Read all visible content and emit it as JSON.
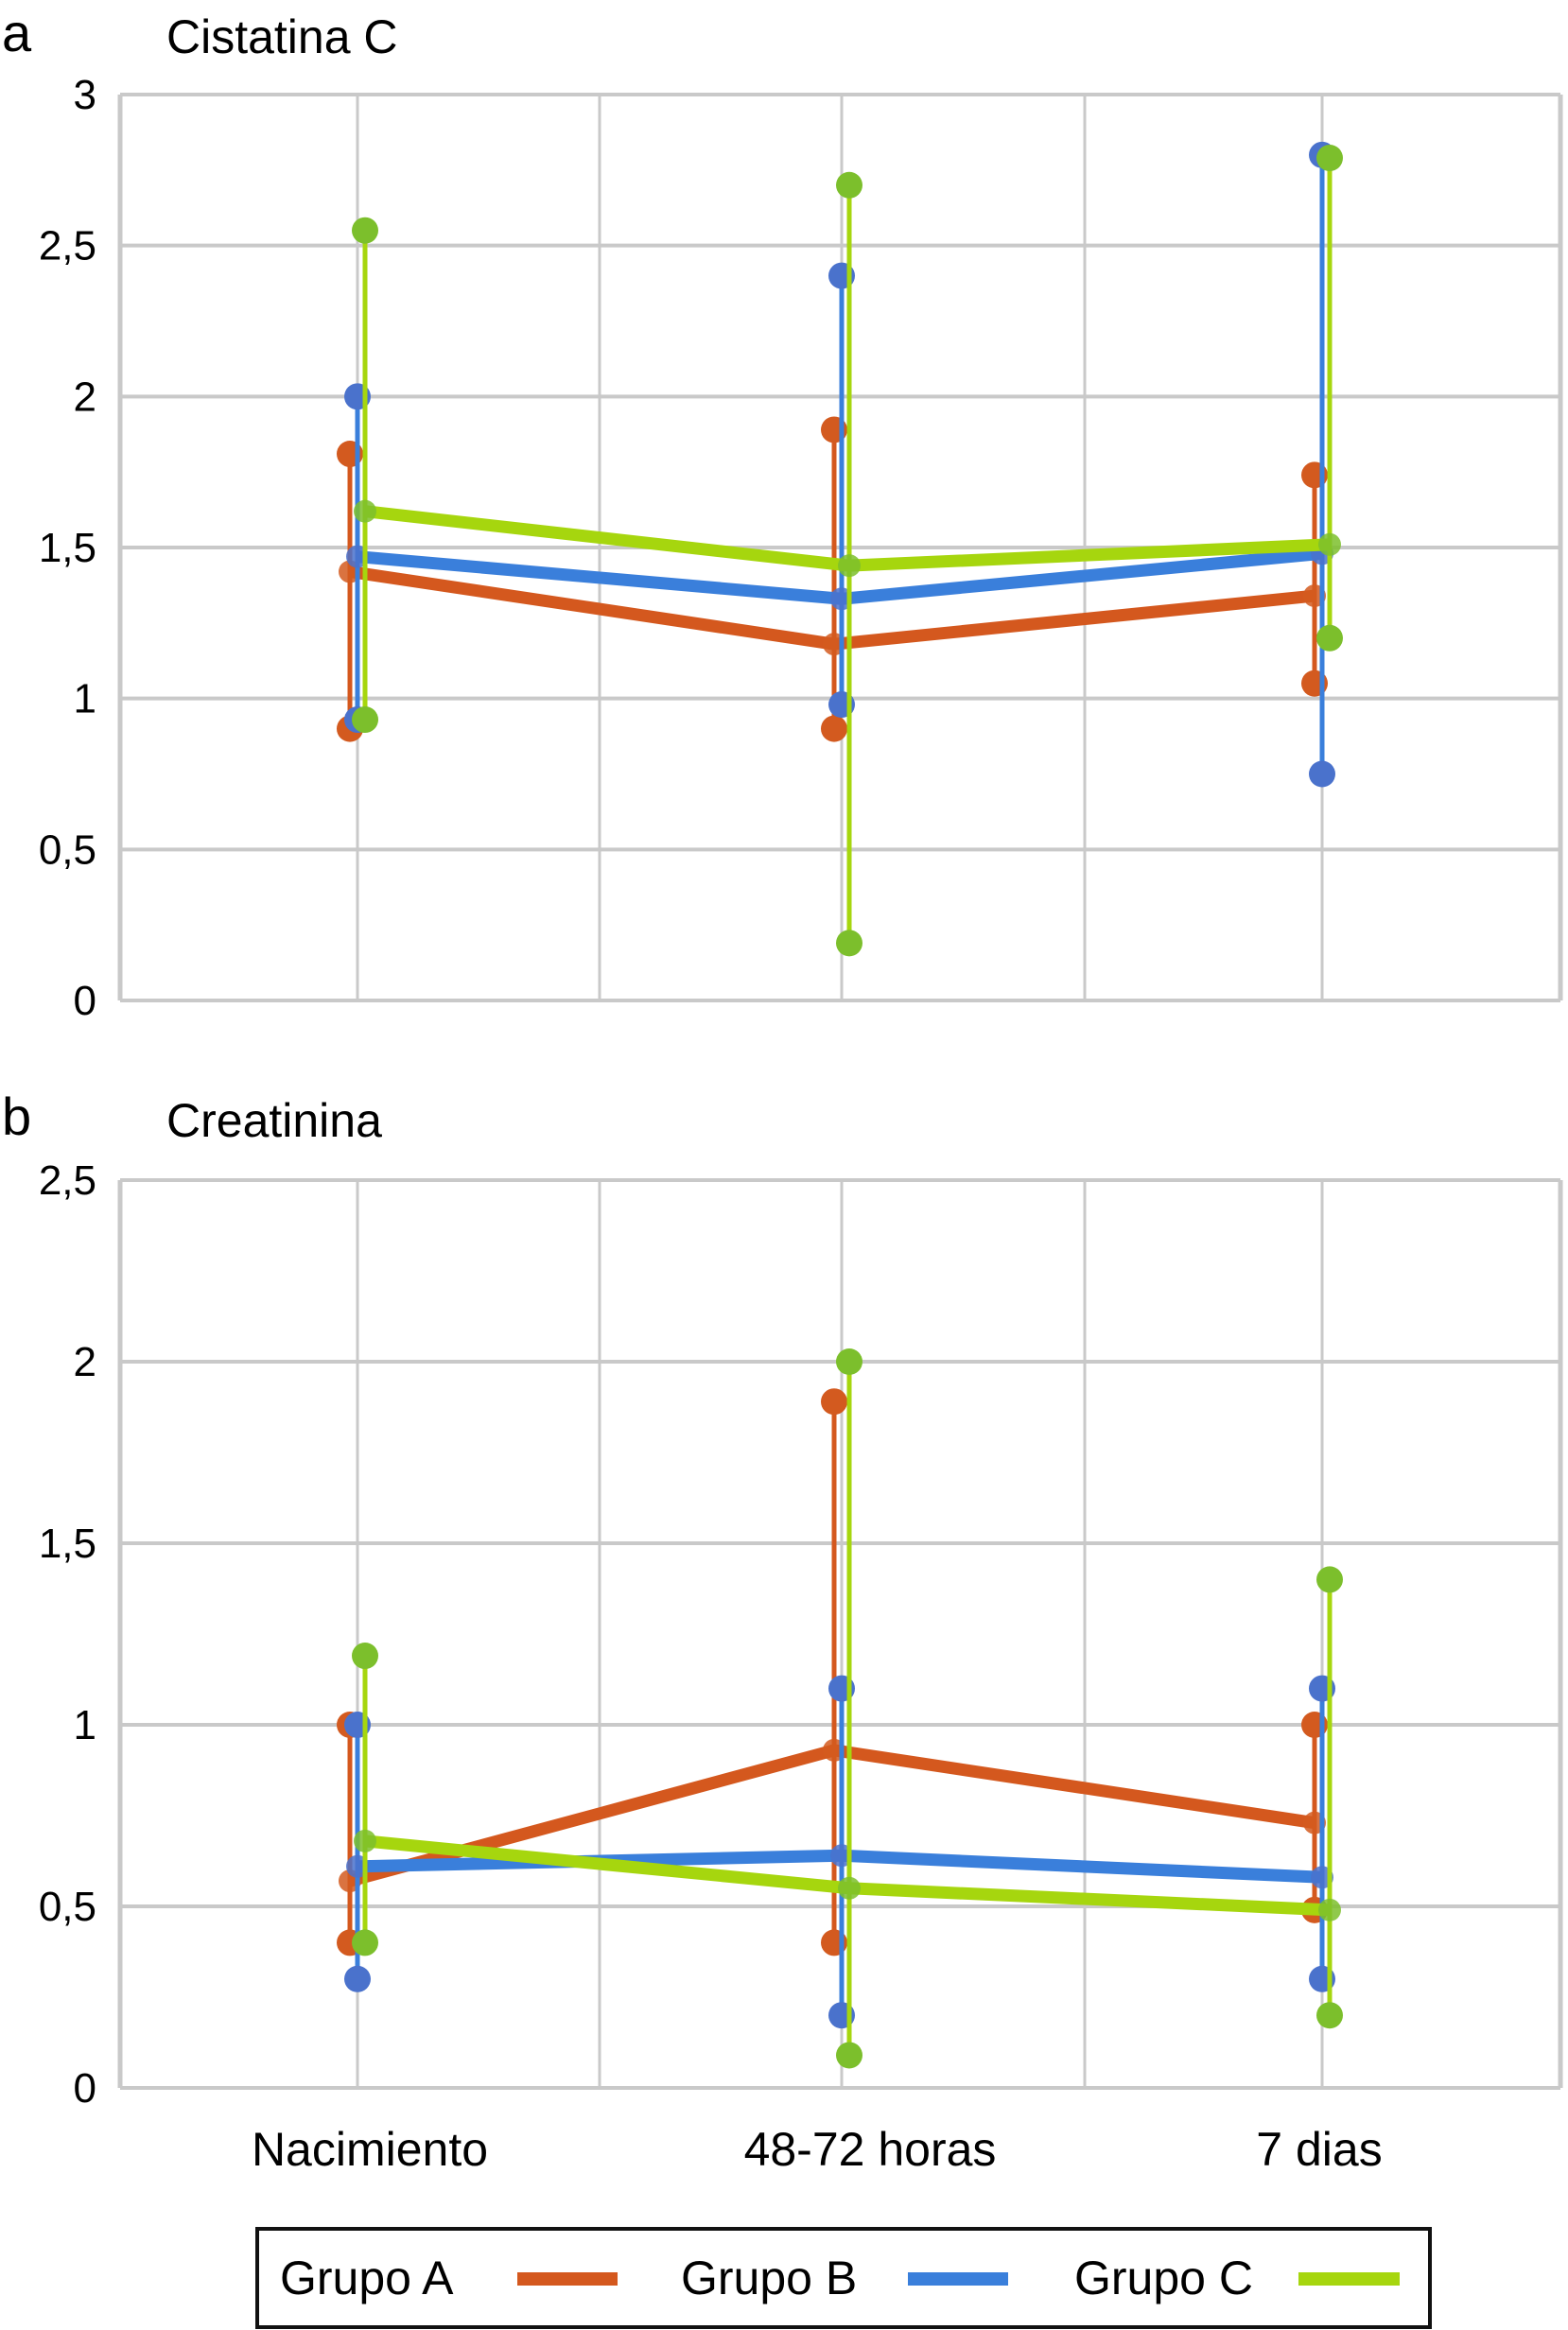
{
  "chart_data": [
    {
      "type": "line",
      "panel_label": "a",
      "title": "Cistatina C",
      "xlabel": "",
      "ylabel": "",
      "ylim": [
        0,
        3
      ],
      "yticks": [
        0,
        0.5,
        1,
        1.5,
        2,
        2.5,
        3
      ],
      "ytick_labels": [
        "0",
        "0,5",
        "1",
        "1,5",
        "2",
        "2,5",
        "3"
      ],
      "categories": [
        "Nacimiento",
        "48-72 horas",
        "7 dias"
      ],
      "show_category_labels": false,
      "grid": true,
      "series": [
        {
          "name": "Grupo A",
          "color": "#D4581E",
          "marker_color": "#D35A1F",
          "values": [
            1.42,
            1.18,
            1.34
          ],
          "min": [
            0.9,
            0.9,
            1.05
          ],
          "max": [
            1.81,
            1.89,
            1.74
          ]
        },
        {
          "name": "Grupo B",
          "color": "#3A7FDB",
          "marker_color": "#4A72CC",
          "values": [
            1.47,
            1.33,
            1.48
          ],
          "min": [
            0.93,
            0.98,
            0.75
          ],
          "max": [
            2.0,
            2.4,
            2.8
          ]
        },
        {
          "name": "Grupo C",
          "color": "#A6D60E",
          "marker_color": "#7CBF2C",
          "values": [
            1.62,
            1.44,
            1.51
          ],
          "min": [
            0.93,
            0.19,
            1.2
          ],
          "max": [
            2.55,
            2.7,
            2.79
          ]
        }
      ]
    },
    {
      "type": "line",
      "panel_label": "b",
      "title": "Creatinina",
      "xlabel": "",
      "ylabel": "",
      "ylim": [
        0,
        2.5
      ],
      "yticks": [
        0,
        0.5,
        1,
        1.5,
        2,
        2.5
      ],
      "ytick_labels": [
        "0",
        "0,5",
        "1",
        "1,5",
        "2",
        "2,5"
      ],
      "categories": [
        "Nacimiento",
        "48-72 horas",
        "7 dias"
      ],
      "show_category_labels": true,
      "grid": true,
      "series": [
        {
          "name": "Grupo A",
          "color": "#D4581E",
          "marker_color": "#D35A1F",
          "values": [
            0.57,
            0.93,
            0.73
          ],
          "min": [
            0.4,
            0.4,
            0.49
          ],
          "max": [
            1.0,
            1.89,
            1.0
          ]
        },
        {
          "name": "Grupo B",
          "color": "#3A7FDB",
          "marker_color": "#4A72CC",
          "values": [
            0.61,
            0.64,
            0.58
          ],
          "min": [
            0.3,
            0.2,
            0.3
          ],
          "max": [
            1.0,
            1.1,
            1.1
          ]
        },
        {
          "name": "Grupo C",
          "color": "#A6D60E",
          "marker_color": "#7CBF2C",
          "values": [
            0.68,
            0.55,
            0.49
          ],
          "min": [
            0.4,
            0.09,
            0.2
          ],
          "max": [
            1.19,
            2.0,
            1.4
          ]
        }
      ]
    }
  ],
  "legend": {
    "placement": "bottom-center",
    "items": [
      {
        "label": "Grupo A",
        "color": "#D4581E"
      },
      {
        "label": "Grupo B",
        "color": "#3A7FDB"
      },
      {
        "label": "Grupo C",
        "color": "#A6D60E"
      }
    ]
  }
}
